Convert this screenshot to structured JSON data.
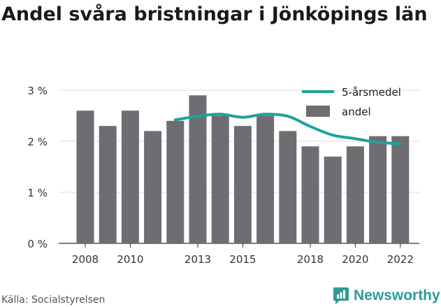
{
  "chart_data": {
    "type": "bar",
    "title": "Andel svåra bristningar i Jönköpings län",
    "xlabel": "",
    "ylabel": "",
    "ylim": [
      0,
      3
    ],
    "y_ticks": [
      0,
      1,
      2,
      3
    ],
    "y_tick_labels": [
      "0 %",
      "1 %",
      "2 %",
      "3 %"
    ],
    "x_tick_years": [
      2008,
      2010,
      2013,
      2015,
      2018,
      2020,
      2022
    ],
    "x_tick_labels": [
      "2008",
      "2010",
      "2013",
      "2015",
      "2018",
      "2020",
      "2022"
    ],
    "grid": true,
    "legend_position": "top-right",
    "x": [
      2008,
      2009,
      2010,
      2011,
      2012,
      2013,
      2014,
      2015,
      2016,
      2017,
      2018,
      2019,
      2020,
      2021,
      2022
    ],
    "series": [
      {
        "name": "andel",
        "type": "bar",
        "color": "#6e6d72",
        "values": [
          2.6,
          2.3,
          2.6,
          2.2,
          2.4,
          2.9,
          2.5,
          2.3,
          2.5,
          2.2,
          1.9,
          1.7,
          1.9,
          2.1,
          2.1
        ]
      },
      {
        "name": "5-årsmedel",
        "type": "line",
        "color": "#1fa39a",
        "values": [
          null,
          null,
          null,
          null,
          2.42,
          2.49,
          2.53,
          2.47,
          2.53,
          2.49,
          2.29,
          2.12,
          2.05,
          1.98,
          1.95
        ]
      }
    ]
  },
  "footer": {
    "source": "Källa: Socialstyrelsen",
    "brand": "Newsworthy",
    "brand_color": "#2f9a94",
    "brand_icon": "newsworthy-logo-icon"
  }
}
